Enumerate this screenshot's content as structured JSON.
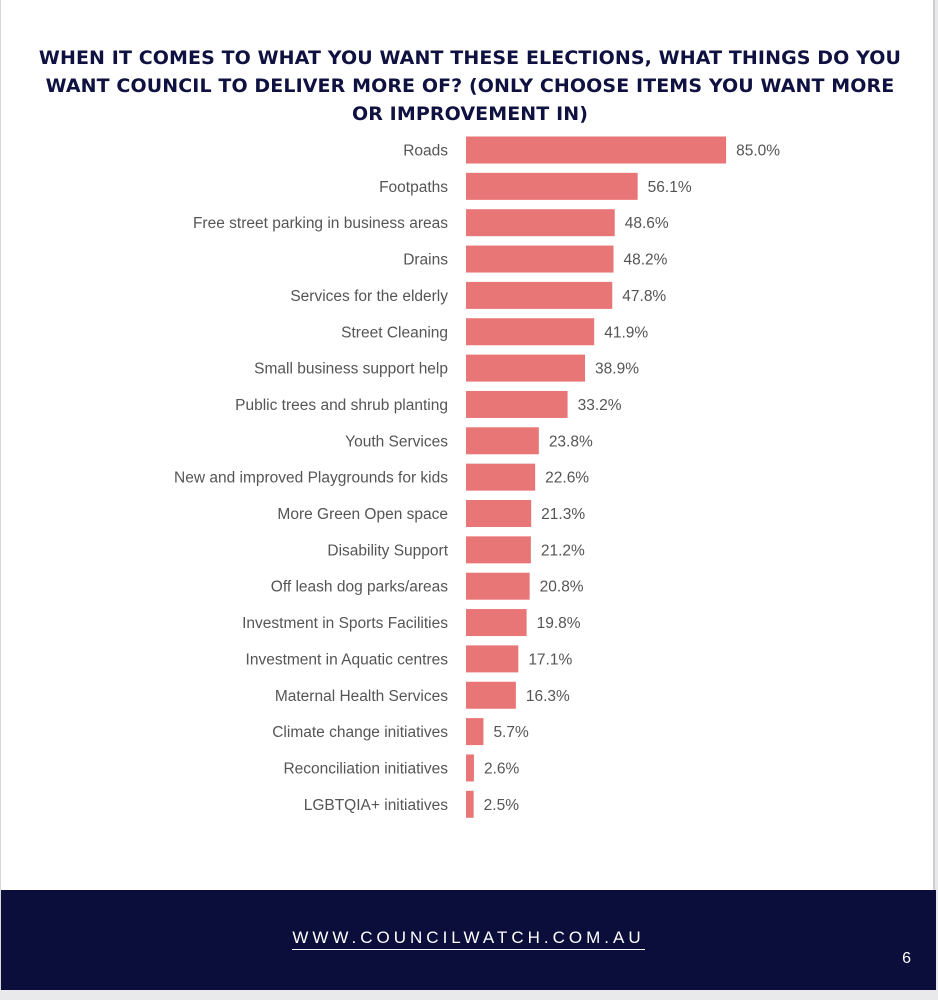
{
  "chart_data": {
    "type": "bar",
    "orientation": "horizontal",
    "title": "WHEN IT COMES TO WHAT YOU WANT THESE ELECTIONS, WHAT THINGS DO YOU WANT COUNCIL TO DELIVER MORE OF? (ONLY CHOOSE ITEMS YOU WANT MORE OR IMPROVEMENT IN)",
    "categories": [
      "Roads",
      "Footpaths",
      "Free street parking in business areas",
      "Drains",
      "Services for the elderly",
      "Street Cleaning",
      "Small business support help",
      "Public trees and shrub planting",
      "Youth Services",
      "New and improved Playgrounds for kids",
      "More Green Open space",
      "Disability Support",
      "Off leash dog parks/areas",
      "Investment in Sports Facilities",
      "Investment in Aquatic centres",
      "Maternal Health Services",
      "Climate change initiatives",
      "Reconciliation initiatives",
      "LGBTQIA+ initiatives"
    ],
    "values": [
      85.0,
      56.1,
      48.6,
      48.2,
      47.8,
      41.9,
      38.9,
      33.2,
      23.8,
      22.6,
      21.3,
      21.2,
      20.8,
      19.8,
      17.1,
      16.3,
      5.7,
      2.6,
      2.5
    ],
    "value_labels": [
      "85.0%",
      "56.1%",
      "48.6%",
      "48.2%",
      "47.8%",
      "41.9%",
      "38.9%",
      "33.2%",
      "23.8%",
      "22.6%",
      "21.3%",
      "21.2%",
      "20.8%",
      "19.8%",
      "17.1%",
      "16.3%",
      "5.7%",
      "2.6%",
      "2.5%"
    ],
    "xlim": [
      0,
      100
    ],
    "grid": false,
    "legend": "none",
    "bar_color": "#e97676"
  },
  "footer": {
    "website": "WWW.COUNCILWATCH.COM.AU",
    "page_number": "6",
    "background_color": "#0b0d3b"
  }
}
